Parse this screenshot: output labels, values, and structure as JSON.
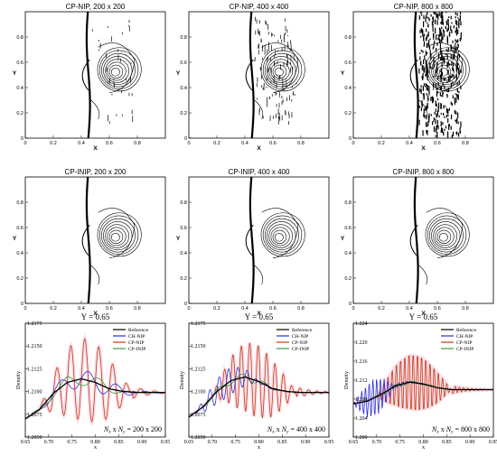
{
  "colors": {
    "reference": "#000000",
    "ch_nip": "#2b2bd6",
    "cp_nip": "#c8381b",
    "cp_inip": "#3c9a3c",
    "highlight": "#f7c9d6"
  },
  "chart_data": [
    {
      "type": "contour",
      "title": "CP-NIP, 200 x 200",
      "xlabel": "X",
      "ylabel": "Y",
      "xlim": [
        0,
        1
      ],
      "ylim": [
        0,
        1
      ],
      "xticks": [
        "0",
        "0.2",
        "0.4",
        "0.6",
        "0.8"
      ],
      "yticks": [
        "0",
        "0.2",
        "0.4",
        "0.6",
        "0.8"
      ],
      "noise": 1
    },
    {
      "type": "contour",
      "title": "CP-NIP, 400 x 400",
      "xlabel": "X",
      "ylabel": "Y",
      "xlim": [
        0,
        1
      ],
      "ylim": [
        0,
        1
      ],
      "xticks": [
        "0",
        "0.2",
        "0.4",
        "0.6",
        "0.8"
      ],
      "yticks": [
        "0",
        "0.2",
        "0.4",
        "0.6",
        "0.8"
      ],
      "noise": 2
    },
    {
      "type": "contour",
      "title": "CP-NIP, 800 x 800",
      "xlabel": "X",
      "ylabel": "Y",
      "xlim": [
        0,
        1
      ],
      "ylim": [
        0,
        1
      ],
      "xticks": [
        "0",
        "0.2",
        "0.4",
        "0.6",
        "0.8"
      ],
      "yticks": [
        "0",
        "0.2",
        "0.4",
        "0.6",
        "0.8"
      ],
      "noise": 3
    },
    {
      "type": "contour",
      "title": "CP-INIP, 200 x 200",
      "xlabel": "X",
      "ylabel": "Y",
      "xlim": [
        0,
        1
      ],
      "ylim": [
        0,
        1
      ],
      "xticks": [
        "0",
        "0.2",
        "0.4",
        "0.6",
        "0.8"
      ],
      "yticks": [
        "0",
        "0.2",
        "0.4",
        "0.6",
        "0.8"
      ],
      "noise": 0
    },
    {
      "type": "contour",
      "title": "CP-INIP, 400 x 400",
      "xlabel": "X",
      "ylabel": "Y",
      "xlim": [
        0,
        1
      ],
      "ylim": [
        0,
        1
      ],
      "xticks": [
        "0",
        "0.2",
        "0.4",
        "0.6",
        "0.8"
      ],
      "yticks": [
        "0",
        "0.2",
        "0.4",
        "0.6",
        "0.8"
      ],
      "noise": 0
    },
    {
      "type": "contour",
      "title": "CP-INIP, 800 x 800",
      "xlabel": "X",
      "ylabel": "Y",
      "xlim": [
        0,
        1
      ],
      "ylim": [
        0,
        1
      ],
      "xticks": [
        "0",
        "0.2",
        "0.4",
        "0.6",
        "0.8"
      ],
      "yticks": [
        "0",
        "0.2",
        "0.4",
        "0.6",
        "0.8"
      ],
      "noise": 0
    },
    {
      "type": "line",
      "title": "Y = 0.65",
      "xlabel": "x",
      "ylabel": "Density",
      "grid_label": "N_x x N_y = 200 x 200",
      "grid_label_parts": {
        "a": "N",
        "as": "x",
        "m": " x ",
        "b": "N",
        "bs": "y",
        "r": " = 200 x 200"
      },
      "xlim": [
        0.65,
        0.95
      ],
      "ylim": [
        1.205,
        1.2175
      ],
      "xticks": [
        "0.65",
        "0.70",
        "0.75",
        "0.80",
        "0.85",
        "0.90",
        "0.95"
      ],
      "yticks": [
        "1.2050",
        "1.2075",
        "1.2100",
        "1.2125",
        "1.2150",
        "1.2175"
      ],
      "legend": [
        "Reference",
        "CH-NIP",
        "CP-NIP",
        "CP-INIP"
      ],
      "legend_position": "top-right",
      "base": {
        "x": [
          0.65,
          0.68,
          0.71,
          0.74,
          0.77,
          0.8,
          0.83,
          0.86,
          0.89,
          0.92,
          0.95
        ],
        "y": [
          1.207,
          1.208,
          1.2098,
          1.211,
          1.2114,
          1.211,
          1.2103,
          1.21,
          1.2099,
          1.2099,
          1.2099
        ]
      },
      "series": [
        {
          "name": "Reference",
          "amp": 0,
          "freq": 0,
          "decay": [
            0.65,
            0.95
          ]
        },
        {
          "name": "CH-NIP",
          "amp": 0.001,
          "freq": 0.06,
          "decay": [
            0.66,
            0.9
          ]
        },
        {
          "name": "CP-NIP",
          "amp": 0.0045,
          "freq": 0.03,
          "decay": [
            0.68,
            0.88
          ]
        },
        {
          "name": "CP-INIP",
          "amp": 0.0007,
          "freq": 0.07,
          "decay": [
            0.66,
            0.88
          ]
        }
      ]
    },
    {
      "type": "line",
      "title": "Y = 0.65",
      "xlabel": "x",
      "ylabel": "Density",
      "grid_label": "N_x x N_y = 400 x 400",
      "grid_label_parts": {
        "a": "N",
        "as": "x",
        "m": " x ",
        "b": "N",
        "bs": "y",
        "r": " = 400 x 400"
      },
      "xlim": [
        0.65,
        0.95
      ],
      "ylim": [
        1.205,
        1.2175
      ],
      "xticks": [
        "0.65",
        "0.70",
        "0.75",
        "0.80",
        "0.85",
        "0.90",
        "0.95"
      ],
      "yticks": [
        "1.2050",
        "1.2075",
        "1.2100",
        "1.2125",
        "1.2150",
        "1.2175"
      ],
      "legend": [
        "Reference",
        "CH-NIP",
        "CP-NIP",
        "CP-INIP"
      ],
      "legend_position": "top-right",
      "base": {
        "x": [
          0.65,
          0.68,
          0.71,
          0.74,
          0.77,
          0.8,
          0.83,
          0.86,
          0.89,
          0.92,
          0.95
        ],
        "y": [
          1.2072,
          1.2083,
          1.21,
          1.2112,
          1.2116,
          1.2111,
          1.2103,
          1.21,
          1.2099,
          1.2099,
          1.2099
        ]
      },
      "series": [
        {
          "name": "Reference",
          "amp": 0,
          "freq": 0,
          "decay": [
            0.65,
            0.95
          ]
        },
        {
          "name": "CH-NIP",
          "amp": 0.0015,
          "freq": 0.02,
          "decay": [
            0.66,
            0.8
          ]
        },
        {
          "name": "CP-NIP",
          "amp": 0.004,
          "freq": 0.018,
          "decay": [
            0.7,
            0.88
          ]
        },
        {
          "name": "CP-INIP",
          "amp": 0.0004,
          "freq": 0.05,
          "decay": [
            0.66,
            0.85
          ]
        }
      ]
    },
    {
      "type": "line",
      "title": "Y = 0.65",
      "xlabel": "x",
      "ylabel": "Density",
      "grid_label": "N_x x N_y = 800 x 800",
      "grid_label_parts": {
        "a": "N",
        "as": "x",
        "m": " x ",
        "b": "N",
        "bs": "y",
        "r": " = 800 x 800"
      },
      "xlim": [
        0.65,
        0.95
      ],
      "ylim": [
        1.2,
        1.224
      ],
      "xticks": [
        "0.65",
        "0.70",
        "0.75",
        "0.80",
        "0.85",
        "0.90",
        "0.95"
      ],
      "yticks": [
        "1.200",
        "1.204",
        "1.208",
        "1.212",
        "1.216",
        "1.220",
        "1.224"
      ],
      "legend": [
        "Reference",
        "CH-NIP",
        "CP-NIP",
        "CP-INIP"
      ],
      "legend_position": "top-right",
      "base": {
        "x": [
          0.65,
          0.68,
          0.71,
          0.74,
          0.77,
          0.8,
          0.83,
          0.86,
          0.89,
          0.92,
          0.95
        ],
        "y": [
          1.207,
          1.2076,
          1.209,
          1.2108,
          1.2116,
          1.2112,
          1.2104,
          1.21,
          1.21,
          1.21,
          1.21
        ]
      },
      "series": [
        {
          "name": "Reference",
          "amp": 0,
          "freq": 0,
          "decay": [
            0.65,
            0.95
          ]
        },
        {
          "name": "CH-NIP",
          "amp": 0.004,
          "freq": 0.008,
          "decay": [
            0.65,
            0.74
          ]
        },
        {
          "name": "CP-NIP",
          "amp": 0.0065,
          "freq": 0.009,
          "decay": [
            0.7,
            0.86
          ]
        },
        {
          "name": "CP-INIP",
          "amp": 0.0003,
          "freq": 0.04,
          "decay": [
            0.66,
            0.85
          ]
        }
      ]
    }
  ]
}
